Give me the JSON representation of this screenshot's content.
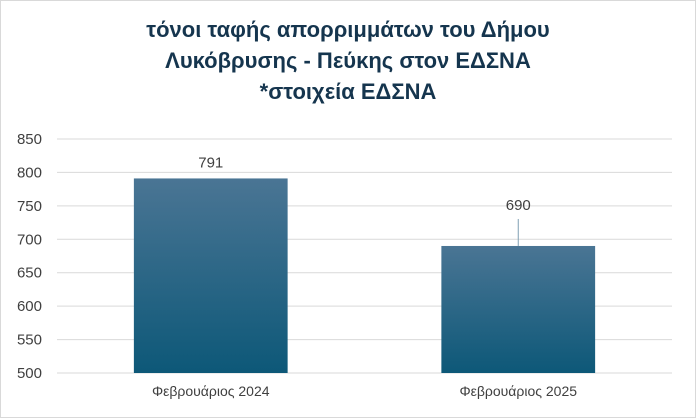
{
  "chart_data": {
    "type": "bar",
    "title": [
      "τόνοι ταφής απορριμμάτων του Δήμου",
      "Λυκόβρυσης - Πεύκης στον ΕΔΣΝΑ",
      "*στοιχεία ΕΔΣΝΑ"
    ],
    "categories": [
      "Φεβρουάριος 2024",
      "Φεβρουάριος 2025"
    ],
    "values": [
      791,
      690
    ],
    "data_labels": [
      "791",
      "690"
    ],
    "ylim": [
      500,
      850
    ],
    "yticks": [
      500,
      550,
      600,
      650,
      700,
      750,
      800,
      850
    ],
    "grid": true,
    "legend": "none",
    "colors": {
      "bar_top": "#4a7594",
      "bar_bottom": "#0d5878",
      "grid": "#d9d9d9",
      "title": "#15354e"
    }
  }
}
